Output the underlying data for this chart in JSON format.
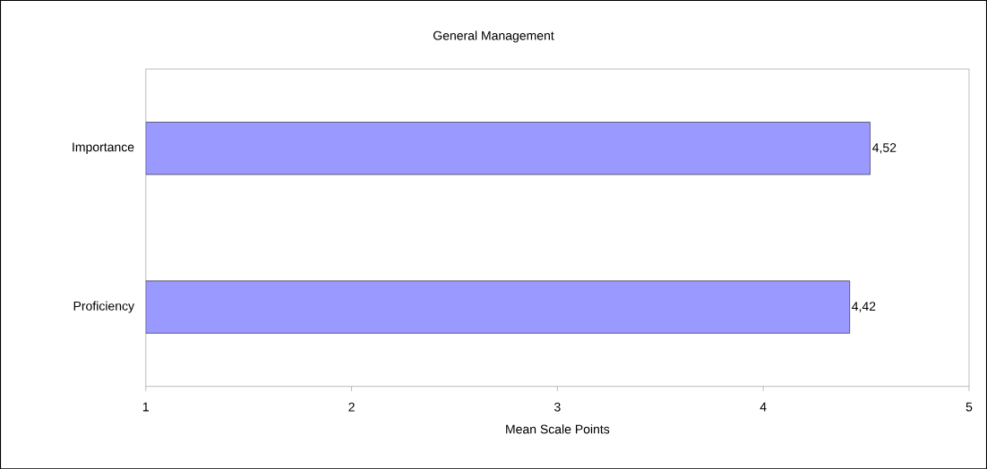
{
  "chart_data": {
    "type": "bar",
    "orientation": "horizontal",
    "title": "General Management",
    "xlabel": "Mean Scale Points",
    "categories": [
      "Importance",
      "Proficiency"
    ],
    "values": [
      4.52,
      4.42
    ],
    "value_labels": [
      "4,52",
      "4,42"
    ],
    "color": "#9999ff",
    "xlim": [
      1,
      5
    ],
    "xticks": [
      1,
      2,
      3,
      4,
      5
    ]
  }
}
